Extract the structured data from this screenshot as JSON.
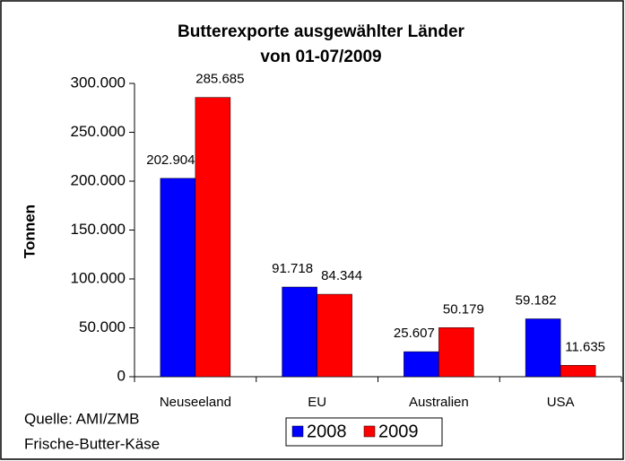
{
  "chart_data": {
    "type": "bar",
    "title": [
      "Butterexporte ausgewählter Länder",
      "von 01-07/2009"
    ],
    "ylabel": "Tonnen",
    "categories": [
      "Neuseeland",
      "EU",
      "Australien",
      "USA"
    ],
    "series": [
      {
        "name": "2008",
        "color": "#0000ff",
        "values": [
          202904,
          91718,
          25607,
          59182
        ],
        "value_labels": [
          "202.904",
          "91.718",
          "25.607",
          "59.182"
        ]
      },
      {
        "name": "2009",
        "color": "#ff0000",
        "values": [
          285685,
          84344,
          50179,
          11635
        ],
        "value_labels": [
          "285.685",
          "84.344",
          "50.179",
          "11.635"
        ]
      }
    ],
    "ylim": [
      0,
      300000
    ],
    "yticks": [
      0,
      {
        "value": 50000,
        "label": "50.000"
      },
      {
        "value": 100000,
        "label": "100.000"
      },
      {
        "value": 150000,
        "label": "150.000"
      },
      {
        "value": 200000,
        "label": "200.000"
      },
      {
        "value": 250000,
        "label": "250.000"
      },
      {
        "value": 300000,
        "label": "300.000"
      }
    ],
    "annotations": [
      "Quelle: AMI/ZMB",
      "Frische-Butter-Käse"
    ],
    "legend": "bottom",
    "grid": false
  }
}
